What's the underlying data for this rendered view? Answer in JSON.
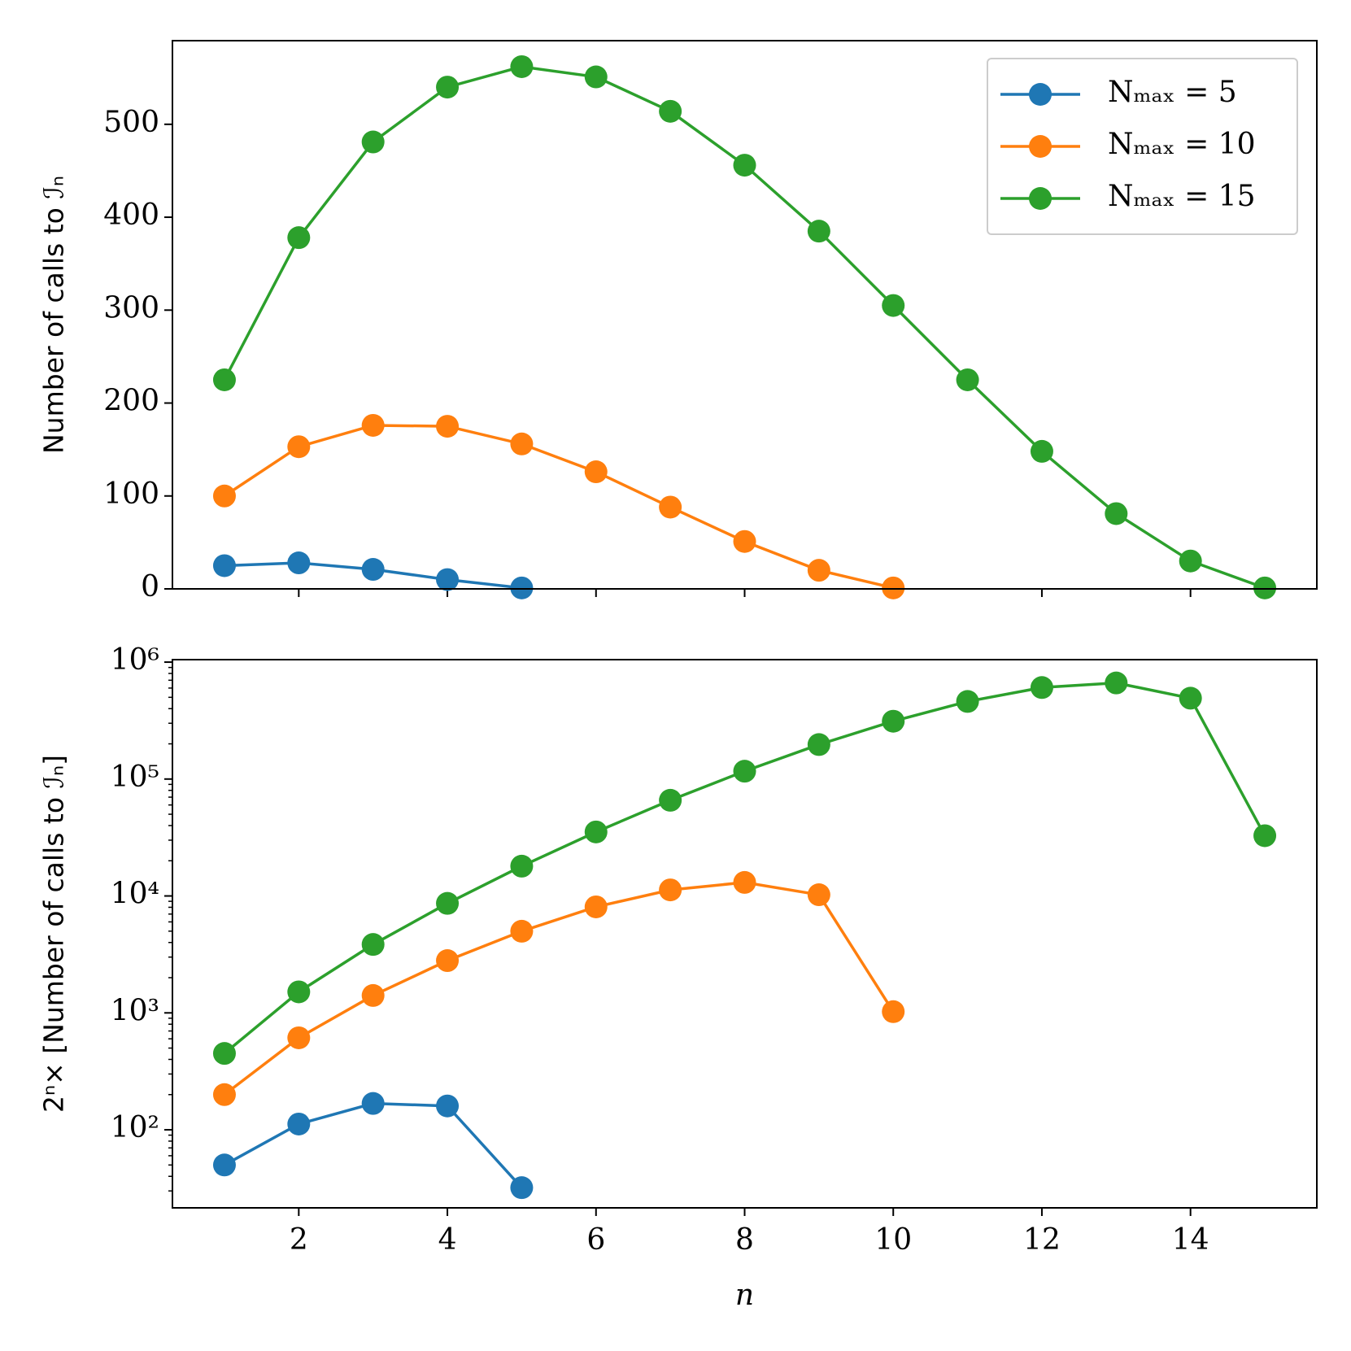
{
  "chart_data": [
    {
      "type": "line",
      "ylabel": "Number of calls to ℐₙ",
      "xlim": [
        0.3,
        15.7
      ],
      "xticks": [
        2,
        4,
        6,
        8,
        10,
        12,
        14
      ],
      "ylim": [
        0,
        590
      ],
      "yticks": [
        0,
        100,
        200,
        300,
        400,
        500
      ],
      "log": false,
      "legend": "upper right",
      "series": [
        {
          "name": "Nₘₐₓ = 5",
          "color": "#1f77b4",
          "x": [
            1,
            2,
            3,
            4,
            5
          ],
          "values": [
            25,
            28,
            21,
            10,
            1
          ]
        },
        {
          "name": "Nₘₐₓ = 10",
          "color": "#ff7f0e",
          "x": [
            1,
            2,
            3,
            4,
            5,
            6,
            7,
            8,
            9,
            10
          ],
          "values": [
            100,
            153,
            176,
            175,
            156,
            126,
            88,
            51,
            20,
            1
          ]
        },
        {
          "name": "Nₘₐₓ = 15",
          "color": "#2ca02c",
          "x": [
            1,
            2,
            3,
            4,
            5,
            6,
            7,
            8,
            9,
            10,
            11,
            12,
            13,
            14,
            15
          ],
          "values": [
            225,
            378,
            481,
            540,
            562,
            551,
            514,
            456,
            385,
            305,
            225,
            148,
            81,
            30,
            1
          ]
        }
      ]
    },
    {
      "type": "line",
      "ylabel": "2ⁿ× [Number of calls to ℐₙ]",
      "xlabel": "n",
      "xlim": [
        0.3,
        15.7
      ],
      "xticks": [
        2,
        4,
        6,
        8,
        10,
        12,
        14
      ],
      "ylim": [
        21.5,
        1050000
      ],
      "yticks": [
        {
          "value": 100,
          "label": "10²"
        },
        {
          "value": 1000,
          "label": "10³"
        },
        {
          "value": 10000,
          "label": "10⁴"
        },
        {
          "value": 100000,
          "label": "10⁵"
        },
        {
          "value": 1000000,
          "label": "10⁶"
        }
      ],
      "log": true,
      "series": [
        {
          "color": "#1f77b4",
          "x": [
            1,
            2,
            3,
            4,
            5
          ],
          "values": [
            50,
            112,
            168,
            160,
            32
          ]
        },
        {
          "color": "#ff7f0e",
          "x": [
            1,
            2,
            3,
            4,
            5,
            6,
            7,
            8,
            9,
            10
          ],
          "values": [
            200,
            612,
            1408,
            2800,
            4992,
            8064,
            11264,
            13056,
            10240,
            1024
          ]
        },
        {
          "color": "#2ca02c",
          "x": [
            1,
            2,
            3,
            4,
            5,
            6,
            7,
            8,
            9,
            10,
            11,
            12,
            13,
            14,
            15
          ],
          "values": [
            450,
            1512,
            3848,
            8640,
            17984,
            35264,
            65792,
            116736,
            197120,
            312320,
            460800,
            606208,
            663552,
            491520,
            32768
          ]
        }
      ]
    }
  ]
}
